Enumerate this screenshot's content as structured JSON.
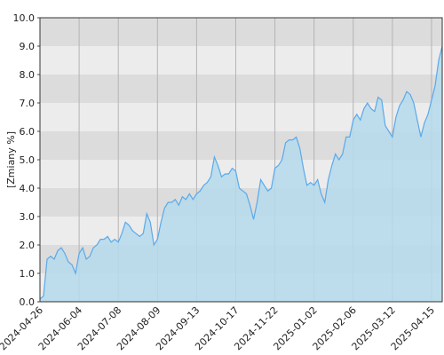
{
  "chart_data": {
    "type": "area",
    "y_label": "[Zmiany %]",
    "categories": [
      "2024-04-26",
      null,
      null,
      null,
      null,
      null,
      null,
      null,
      null,
      null,
      null,
      "2024-06-04",
      null,
      null,
      null,
      null,
      null,
      null,
      null,
      null,
      null,
      null,
      "2024-07-08",
      null,
      null,
      null,
      null,
      null,
      null,
      null,
      null,
      null,
      null,
      "2024-08-09",
      null,
      null,
      null,
      null,
      null,
      null,
      null,
      null,
      null,
      null,
      "2024-09-13",
      null,
      null,
      null,
      null,
      null,
      null,
      null,
      null,
      null,
      null,
      "2024-10-17",
      null,
      null,
      null,
      null,
      null,
      null,
      null,
      null,
      null,
      null,
      "2024-11-22",
      null,
      null,
      null,
      null,
      null,
      null,
      null,
      null,
      null,
      null,
      "2025-01-02",
      null,
      null,
      null,
      null,
      null,
      null,
      null,
      null,
      null,
      null,
      "2025-02-06",
      null,
      null,
      null,
      null,
      null,
      null,
      null,
      null,
      null,
      null,
      "2025-03-12",
      null,
      null,
      null,
      null,
      null,
      null,
      null,
      null,
      null,
      null,
      "2025-04-15",
      null,
      null,
      null
    ],
    "values": [
      0.1,
      0.2,
      1.5,
      1.6,
      1.5,
      1.8,
      1.9,
      1.7,
      1.4,
      1.3,
      1.0,
      1.7,
      1.9,
      1.5,
      1.6,
      1.9,
      2.0,
      2.2,
      2.2,
      2.3,
      2.1,
      2.2,
      2.1,
      2.4,
      2.8,
      2.7,
      2.5,
      2.4,
      2.3,
      2.4,
      3.1,
      2.8,
      2.0,
      2.2,
      2.8,
      3.3,
      3.5,
      3.5,
      3.6,
      3.4,
      3.7,
      3.6,
      3.8,
      3.6,
      3.8,
      3.9,
      4.1,
      4.2,
      4.4,
      5.1,
      4.8,
      4.4,
      4.5,
      4.5,
      4.7,
      4.6,
      4.0,
      3.9,
      3.8,
      3.4,
      2.9,
      3.5,
      4.3,
      4.1,
      3.9,
      4.0,
      4.7,
      4.8,
      5.0,
      5.6,
      5.7,
      5.7,
      5.8,
      5.4,
      4.7,
      4.1,
      4.2,
      4.1,
      4.3,
      3.8,
      3.5,
      4.3,
      4.8,
      5.2,
      5.0,
      5.2,
      5.8,
      5.8,
      6.4,
      6.6,
      6.4,
      6.8,
      7.0,
      6.8,
      6.7,
      7.2,
      7.1,
      6.2,
      6.0,
      5.8,
      6.5,
      6.9,
      7.1,
      7.4,
      7.3,
      7.0,
      6.4,
      5.8,
      6.3,
      6.6,
      7.1,
      7.6,
      8.5,
      9.0
    ],
    "color": "#5aa9ea",
    "fill": "#b5dbec",
    "ylim": [
      0,
      10
    ],
    "yticks": [
      {
        "value": 0,
        "label": "0.0"
      },
      {
        "value": 1,
        "label": "1.0"
      },
      {
        "value": 2,
        "label": "2.0"
      },
      {
        "value": 3,
        "label": "3.0"
      },
      {
        "value": 4,
        "label": "4.0"
      },
      {
        "value": 5,
        "label": "5.0"
      },
      {
        "value": 6,
        "label": "6.0"
      },
      {
        "value": 7,
        "label": "7.0"
      },
      {
        "value": 8,
        "label": "8.0"
      },
      {
        "value": 9,
        "label": "9.0"
      },
      {
        "value": 10,
        "label": "10.0"
      }
    ],
    "grid": true
  }
}
